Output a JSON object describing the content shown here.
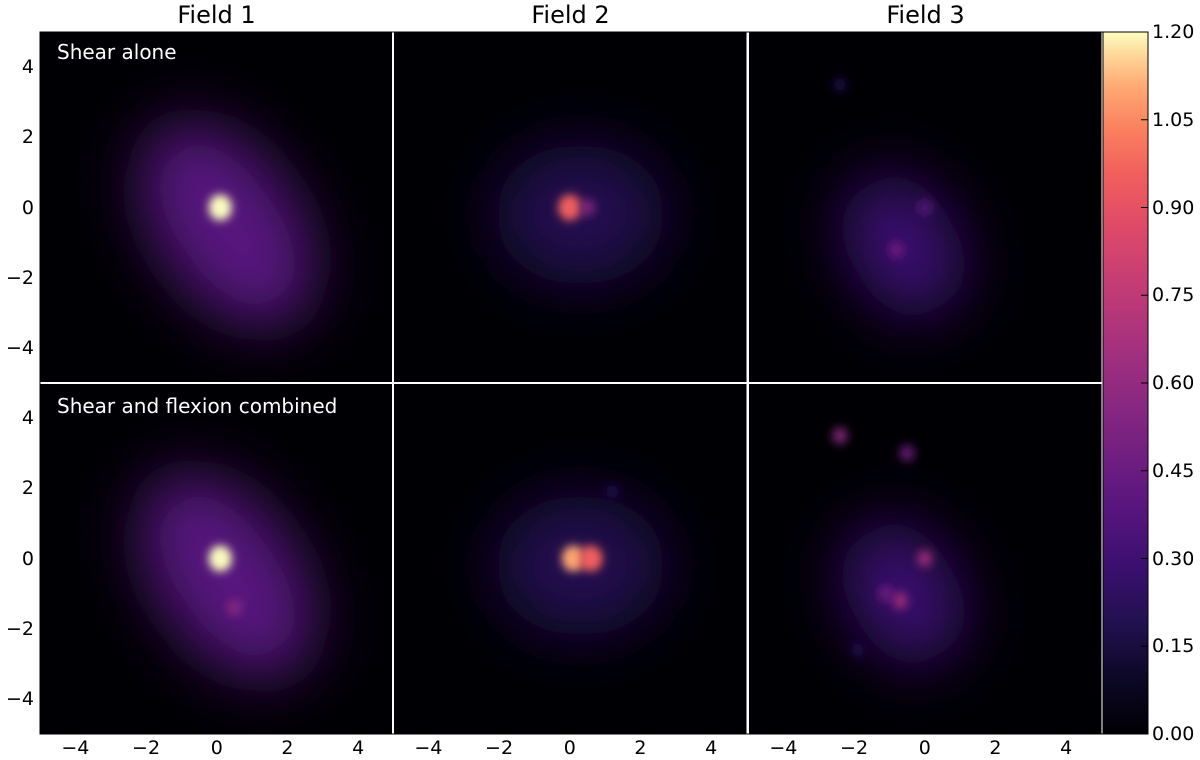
{
  "chart_data": {
    "type": "heatmap",
    "layout": "2 rows x 3 columns of density maps with a shared colorbar",
    "colormap": "magma",
    "columns": [
      "Field 1",
      "Field 2",
      "Field 3"
    ],
    "rows": [
      "Shear alone",
      "Shear and flexion combined"
    ],
    "xlim": [
      -5,
      5
    ],
    "ylim": [
      -5,
      5
    ],
    "x_ticks": [
      "−4",
      "−2",
      "0",
      "2",
      "4"
    ],
    "y_ticks": [
      "4",
      "2",
      "0",
      "−2",
      "−4"
    ],
    "colorbar": {
      "range": [
        0.0,
        1.2
      ],
      "ticks": [
        "1.20",
        "1.05",
        "0.90",
        "0.75",
        "0.60",
        "0.45",
        "0.30",
        "0.15",
        "0.00"
      ]
    },
    "panels": [
      {
        "row": "Shear alone",
        "column": "Field 1",
        "features": [
          {
            "kind": "extended halo",
            "x": 0.3,
            "y": -0.5,
            "peak": 0.3
          },
          {
            "kind": "compact peak",
            "x": 0.1,
            "y": 0.0,
            "peak": 1.2
          }
        ]
      },
      {
        "row": "Shear alone",
        "column": "Field 2",
        "features": [
          {
            "kind": "extended halo",
            "x": 0.3,
            "y": -0.2,
            "peak": 0.14
          },
          {
            "kind": "compact peak",
            "x": 0.0,
            "y": 0.0,
            "peak": 0.9
          },
          {
            "kind": "compact peak",
            "x": 0.5,
            "y": 0.0,
            "peak": 0.55
          }
        ]
      },
      {
        "row": "Shear alone",
        "column": "Field 3",
        "features": [
          {
            "kind": "extended halo",
            "x": -0.6,
            "y": -1.1,
            "peak": 0.2
          },
          {
            "kind": "compact peak",
            "x": -0.8,
            "y": -1.2,
            "peak": 0.42
          },
          {
            "kind": "compact peak",
            "x": 0.0,
            "y": 0.0,
            "peak": 0.36
          },
          {
            "kind": "compact peak",
            "x": -2.4,
            "y": 3.5,
            "peak": 0.15
          }
        ]
      },
      {
        "row": "Shear and flexion combined",
        "column": "Field 1",
        "features": [
          {
            "kind": "extended halo",
            "x": 0.3,
            "y": -0.5,
            "peak": 0.3
          },
          {
            "kind": "compact peak",
            "x": 0.1,
            "y": 0.0,
            "peak": 1.2
          },
          {
            "kind": "compact peak",
            "x": 0.5,
            "y": -1.4,
            "peak": 0.55
          }
        ]
      },
      {
        "row": "Shear and flexion combined",
        "column": "Field 2",
        "features": [
          {
            "kind": "extended halo",
            "x": 0.3,
            "y": -0.2,
            "peak": 0.14
          },
          {
            "kind": "compact peak",
            "x": 0.1,
            "y": 0.0,
            "peak": 1.05
          },
          {
            "kind": "compact peak",
            "x": 0.6,
            "y": 0.0,
            "peak": 0.95
          },
          {
            "kind": "compact peak",
            "x": 1.2,
            "y": 1.9,
            "peak": 0.1
          }
        ]
      },
      {
        "row": "Shear and flexion combined",
        "column": "Field 3",
        "features": [
          {
            "kind": "extended halo",
            "x": -0.6,
            "y": -1.0,
            "peak": 0.22
          },
          {
            "kind": "compact peak",
            "x": -0.7,
            "y": -1.2,
            "peak": 0.6
          },
          {
            "kind": "compact peak",
            "x": 0.0,
            "y": 0.0,
            "peak": 0.62
          },
          {
            "kind": "compact peak",
            "x": -1.1,
            "y": -1.0,
            "peak": 0.4
          },
          {
            "kind": "compact peak",
            "x": -2.4,
            "y": 3.5,
            "peak": 0.5
          },
          {
            "kind": "compact peak",
            "x": -0.5,
            "y": 3.0,
            "peak": 0.45
          },
          {
            "kind": "compact peak",
            "x": -1.9,
            "y": -2.6,
            "peak": 0.12
          }
        ]
      }
    ]
  }
}
